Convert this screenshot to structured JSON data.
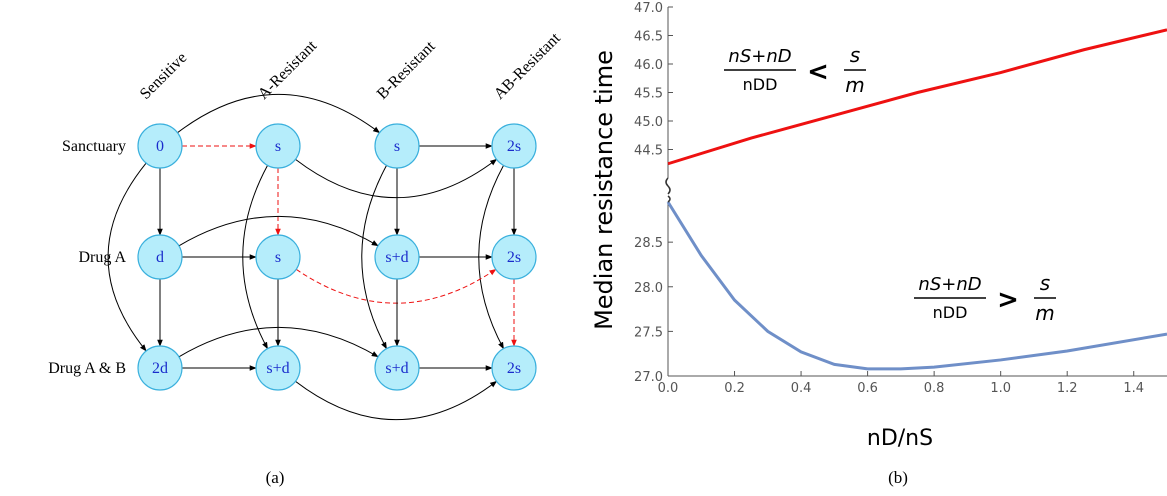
{
  "diagram": {
    "columns": [
      "Sensitive",
      "A-Resistant",
      "B-Resistant",
      "AB-Resistant"
    ],
    "rows": [
      "Sanctuary",
      "Drug A",
      "Drug A & B"
    ],
    "nodes": [
      [
        "0",
        "s",
        "s",
        "2s"
      ],
      [
        "d",
        "s",
        "s+d",
        "2s"
      ],
      [
        "2d",
        "s+d",
        "s+d",
        "2s"
      ]
    ],
    "caption": "(a)"
  },
  "chart_data": [
    {
      "type": "line",
      "ylabel": "Median resistance time",
      "annotation": {
        "numerator": "nS+nD",
        "denominator": "nDD",
        "relation": "<",
        "rhs_numerator": "s",
        "rhs_denominator": "m"
      },
      "x": [
        0,
        0.25,
        0.5,
        0.75,
        1.0,
        1.25,
        1.5
      ],
      "series": [
        {
          "color": "#ee1111",
          "values": [
            44.25,
            44.7,
            45.1,
            45.5,
            45.85,
            46.25,
            46.6
          ]
        }
      ],
      "xlim": [
        0,
        1.5
      ],
      "ylim": [
        44.0,
        47.0
      ],
      "yticks": [
        44.5,
        {
          "value": 45,
          "label": "45.0"
        },
        45.5,
        {
          "value": 46,
          "label": "46.0"
        },
        46.5,
        {
          "value": 47,
          "label": "47.0"
        }
      ]
    },
    {
      "type": "line",
      "xlabel": "nD/nS",
      "annotation": {
        "numerator": "nS+nD",
        "denominator": "nDD",
        "relation": ">",
        "rhs_numerator": "s",
        "rhs_denominator": "m"
      },
      "x": [
        0,
        0.1,
        0.2,
        0.3,
        0.4,
        0.5,
        0.6,
        0.7,
        0.8,
        1.0,
        1.2,
        1.5
      ],
      "series": [
        {
          "color": "#6f8fc8",
          "values": [
            28.95,
            28.35,
            27.85,
            27.5,
            27.27,
            27.13,
            27.08,
            27.08,
            27.1,
            27.18,
            27.28,
            27.47
          ]
        }
      ],
      "xlim": [
        0,
        1.5
      ],
      "ylim": [
        27.0,
        28.95
      ],
      "xticks": [
        {
          "value": 0,
          "label": "0.0"
        },
        0.2,
        0.4,
        0.6,
        0.8,
        {
          "value": 1,
          "label": "1.0"
        },
        1.2,
        1.4
      ],
      "yticks": [
        {
          "value": 27,
          "label": "27.0"
        },
        27.5,
        {
          "value": 28,
          "label": "28.0"
        },
        28.5
      ]
    }
  ],
  "caption": "(b)"
}
